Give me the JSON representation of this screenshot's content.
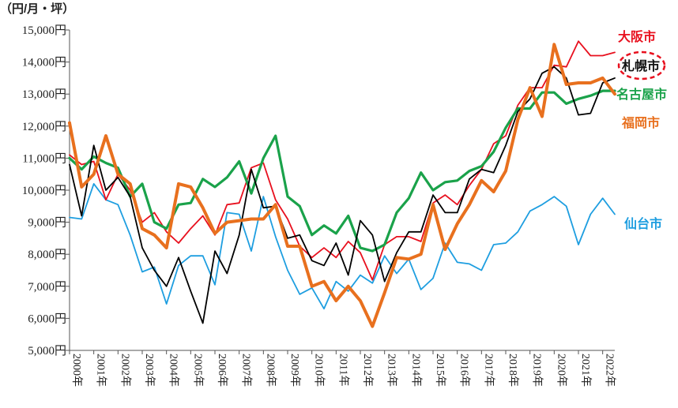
{
  "chart_data": {
    "type": "line",
    "unit_label": "（円/月・坪）",
    "ylim": [
      5000,
      15000
    ],
    "yticks": [
      5000,
      6000,
      7000,
      8000,
      9000,
      10000,
      11000,
      12000,
      13000,
      14000,
      15000
    ],
    "ytick_labels": [
      "5,000円",
      "6,000円",
      "7,000円",
      "8,000円",
      "9,000円",
      "10,000円",
      "11,000円",
      "12,000円",
      "13,000円",
      "14,000円",
      "15,000円"
    ],
    "x_labels": [
      "2000年",
      "2001年",
      "2002年",
      "2003年",
      "2004年",
      "2005年",
      "2006年",
      "2007年",
      "2008年",
      "2009年",
      "2010年",
      "2011年",
      "2012年",
      "2013年",
      "2014年",
      "2015年",
      "2016年",
      "2017年",
      "2018年",
      "2019年",
      "2020年",
      "2021年",
      "2022年"
    ],
    "periods_per_year": 2,
    "grid": false,
    "legend": "inline labels at right end of lines",
    "series": [
      {
        "name": "大阪市",
        "color": "#e8101e",
        "values": [
          11100,
          10800,
          10900,
          9700,
          10500,
          10000,
          9000,
          9300,
          8700,
          8350,
          8800,
          9200,
          8600,
          9550,
          9600,
          10700,
          10850,
          9700,
          9100,
          8250,
          7900,
          8200,
          7900,
          8400,
          8050,
          7200,
          8300,
          8550,
          8550,
          8400,
          9600,
          9850,
          9550,
          10150,
          10650,
          11450,
          11700,
          12650,
          13200,
          13200,
          13900,
          13850,
          14650,
          14200,
          14200,
          14300
        ]
      },
      {
        "name": "札幌市",
        "color": "#000000",
        "values": [
          10800,
          9200,
          11400,
          10000,
          10400,
          9800,
          8200,
          7500,
          7000,
          7900,
          6850,
          5850,
          8100,
          7400,
          8600,
          10650,
          9450,
          9500,
          8500,
          8600,
          7800,
          7650,
          8350,
          7350,
          9050,
          8600,
          7150,
          8050,
          8700,
          8700,
          9850,
          9300,
          9300,
          10350,
          10650,
          10550,
          11400,
          12450,
          12850,
          13650,
          13850,
          13500,
          12350,
          12400,
          13350,
          13500
        ]
      },
      {
        "name": "名古屋市",
        "color": "#1aa24a",
        "values": [
          11000,
          10650,
          11050,
          10850,
          10700,
          9800,
          10200,
          9000,
          8800,
          9550,
          9600,
          10350,
          10100,
          10400,
          10900,
          9900,
          11000,
          11700,
          9800,
          9500,
          8600,
          8900,
          8650,
          9200,
          8200,
          8100,
          8300,
          9300,
          9750,
          10550,
          10000,
          10250,
          10300,
          10600,
          10750,
          11200,
          11950,
          12550,
          12550,
          13050,
          13050,
          12700,
          12850,
          12950,
          13100,
          13100
        ]
      },
      {
        "name": "福岡市",
        "color": "#e8701e",
        "values": [
          12100,
          10100,
          10500,
          11700,
          10500,
          10200,
          8800,
          8600,
          8200,
          10200,
          10100,
          9450,
          8650,
          9000,
          9050,
          9100,
          9100,
          9550,
          8250,
          8250,
          7000,
          7150,
          6550,
          7000,
          6550,
          5750,
          6800,
          7900,
          7850,
          8000,
          9550,
          8150,
          8950,
          9550,
          10300,
          9950,
          10600,
          12200,
          13200,
          12300,
          14550,
          13300,
          13350,
          13350,
          13500,
          13000
        ]
      },
      {
        "name": "仙台市",
        "color": "#1e9ee0",
        "values": [
          9150,
          9100,
          10200,
          9700,
          9550,
          8600,
          7450,
          7600,
          6450,
          7650,
          7950,
          7950,
          7050,
          9300,
          9250,
          8100,
          9800,
          8550,
          7500,
          6750,
          6950,
          6300,
          7150,
          6850,
          7350,
          7100,
          7950,
          7400,
          7850,
          6900,
          7250,
          8350,
          7750,
          7700,
          7500,
          8300,
          8350,
          8700,
          9350,
          9550,
          9800,
          9500,
          8300,
          9250,
          9750,
          9250
        ]
      }
    ]
  }
}
